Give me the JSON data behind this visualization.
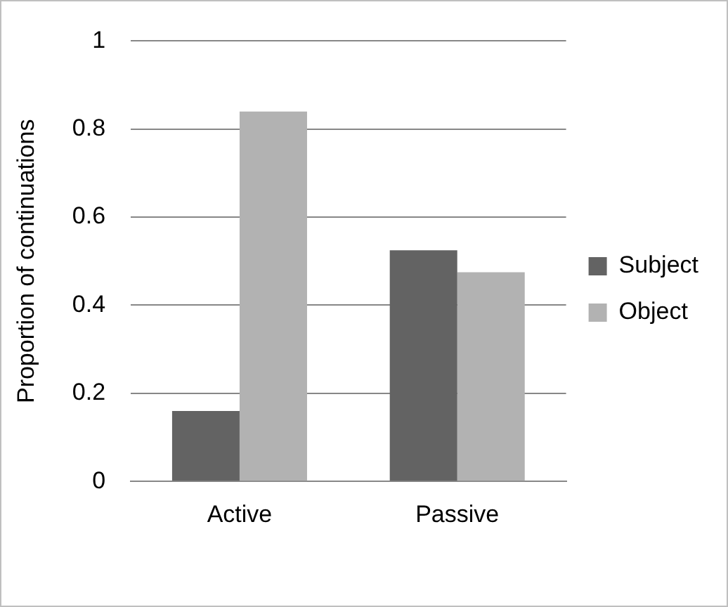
{
  "chart_data": {
    "type": "bar",
    "ylabel": "Proportion of continuations",
    "categories": [
      "Active",
      "Passive"
    ],
    "series": [
      {
        "name": "Subject",
        "color": "#636363",
        "values": [
          0.16,
          0.525
        ]
      },
      {
        "name": "Object",
        "color": "#b2b2b2",
        "values": [
          0.84,
          0.475
        ]
      }
    ],
    "ylim": [
      0,
      1
    ],
    "yticks": [
      0,
      0.2,
      0.4,
      0.6,
      0.8,
      1
    ],
    "grid": "y",
    "legend": "right"
  }
}
